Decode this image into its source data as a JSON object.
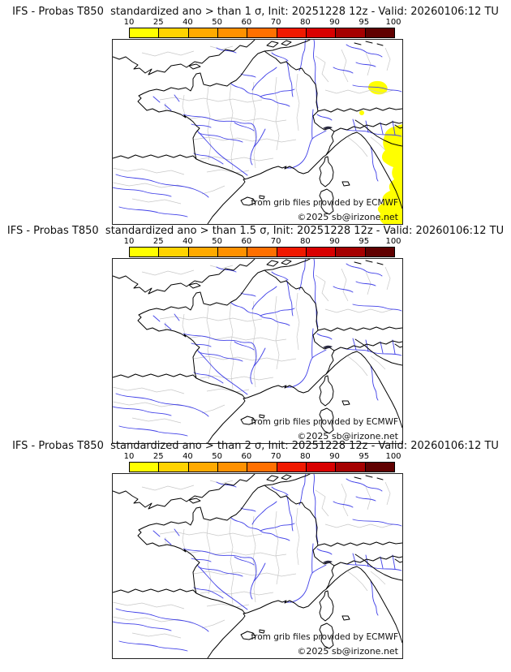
{
  "page": {
    "background": "#ffffff"
  },
  "colorbar": {
    "ticks": [
      "10",
      "25",
      "40",
      "50",
      "60",
      "70",
      "80",
      "90",
      "95",
      "100"
    ],
    "colors": [
      "#ffff00",
      "#ffd300",
      "#ffaa00",
      "#ff9100",
      "#ff7000",
      "#f01900",
      "#d80000",
      "#a50000",
      "#600000"
    ],
    "unit": "%"
  },
  "map_colors": {
    "coast": "#000000",
    "rivers": "#4141e8",
    "admin_borders": "#c8c8c8",
    "shading_10_25": "#ffff00"
  },
  "map_credits": {
    "line1": "from grib files provided by ECMWF",
    "line2": "©2025 sb@irizone.net"
  },
  "panels": [
    {
      "title": "IFS - Probas T850  standardized ano > than 1 σ, Init: 20251228 12z - Valid: 20260106:12 TU",
      "threshold": "1 σ",
      "init": "20251228 12z",
      "valid": "20260106:12 TU",
      "shaded_regions": [
        {
          "probability_bin": "10-25 %",
          "color": "#ffff00",
          "area": "southwest Germany patch"
        },
        {
          "probability_bin": "10-25 %",
          "color": "#ffff00",
          "area": "small spot near Swiss border"
        },
        {
          "probability_bin": "10-25 %",
          "color": "#ffff00",
          "area": "northwest Italy / Ligurian-Tuscan coast along right edge to bottom corner"
        }
      ]
    },
    {
      "title": "IFS - Probas T850  standardized ano > than 1.5 σ, Init: 20251228 12z - Valid: 20260106:12 TU",
      "threshold": "1.5 σ",
      "init": "20251228 12z",
      "valid": "20260106:12 TU",
      "shaded_regions": []
    },
    {
      "title": "IFS - Probas T850  standardized ano > than 2 σ, Init: 20251228 12z - Valid: 20260106:12 TU",
      "threshold": "2 σ",
      "init": "20251228 12z",
      "valid": "20260106:12 TU",
      "shaded_regions": []
    }
  ]
}
